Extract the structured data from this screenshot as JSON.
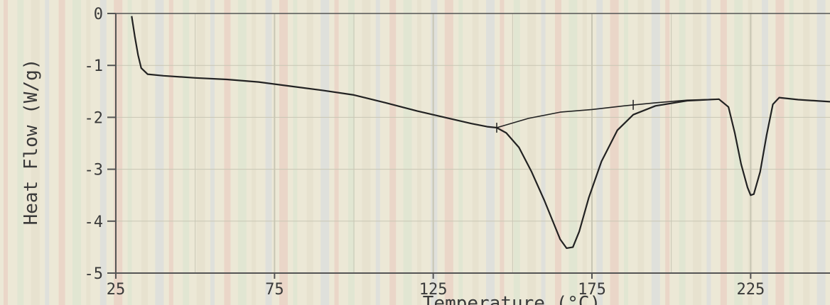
{
  "chart_data": {
    "type": "line",
    "title": "",
    "xlabel": "Temperature (°C)",
    "ylabel": "Heat Flow (W/g)",
    "xlim": [
      25,
      250
    ],
    "ylim": [
      -5,
      0
    ],
    "xticks": [
      25,
      75,
      125,
      175,
      225
    ],
    "xtick_labels": [
      "25",
      "75",
      "125",
      "175",
      "225"
    ],
    "yticks": [
      0,
      -1,
      -2,
      -3,
      -4,
      -5
    ],
    "ytick_labels": [
      "0",
      "-1",
      "-2",
      "-3",
      "-4",
      "-5"
    ],
    "grid": true,
    "legend": "none",
    "colors": {
      "line": "#222222",
      "axis": "#555555",
      "grid": "#c8c6b4",
      "background": "#ece8d6"
    },
    "series": [
      {
        "values": [
          [
            30,
            -0.05
          ],
          [
            31,
            -0.45
          ],
          [
            32,
            -0.8
          ],
          [
            33,
            -1.05
          ],
          [
            35,
            -1.17
          ],
          [
            40,
            -1.2
          ],
          [
            50,
            -1.24
          ],
          [
            60,
            -1.27
          ],
          [
            70,
            -1.32
          ],
          [
            80,
            -1.4
          ],
          [
            90,
            -1.48
          ],
          [
            100,
            -1.57
          ],
          [
            110,
            -1.72
          ],
          [
            120,
            -1.88
          ],
          [
            130,
            -2.02
          ],
          [
            137,
            -2.12
          ],
          [
            142,
            -2.18
          ],
          [
            145,
            -2.2
          ],
          [
            148,
            -2.3
          ],
          [
            152,
            -2.58
          ],
          [
            156,
            -3.05
          ],
          [
            160,
            -3.6
          ],
          [
            163,
            -4.05
          ],
          [
            165,
            -4.35
          ],
          [
            167,
            -4.52
          ],
          [
            169,
            -4.5
          ],
          [
            171,
            -4.2
          ],
          [
            174,
            -3.55
          ],
          [
            178,
            -2.85
          ],
          [
            183,
            -2.25
          ],
          [
            188,
            -1.95
          ],
          [
            195,
            -1.78
          ],
          [
            205,
            -1.68
          ],
          [
            215,
            -1.65
          ],
          [
            218,
            -1.8
          ],
          [
            220,
            -2.3
          ],
          [
            222,
            -2.9
          ],
          [
            224,
            -3.35
          ],
          [
            225,
            -3.5
          ],
          [
            226,
            -3.48
          ],
          [
            228,
            -3.05
          ],
          [
            230,
            -2.35
          ],
          [
            232,
            -1.75
          ],
          [
            234,
            -1.62
          ],
          [
            240,
            -1.66
          ],
          [
            250,
            -1.7
          ]
        ]
      },
      {
        "values": [
          [
            145,
            -2.2
          ],
          [
            155,
            -2.02
          ],
          [
            165,
            -1.9
          ],
          [
            175,
            -1.85
          ],
          [
            185,
            -1.78
          ],
          [
            195,
            -1.72
          ],
          [
            205,
            -1.67
          ],
          [
            215,
            -1.65
          ]
        ]
      }
    ]
  }
}
